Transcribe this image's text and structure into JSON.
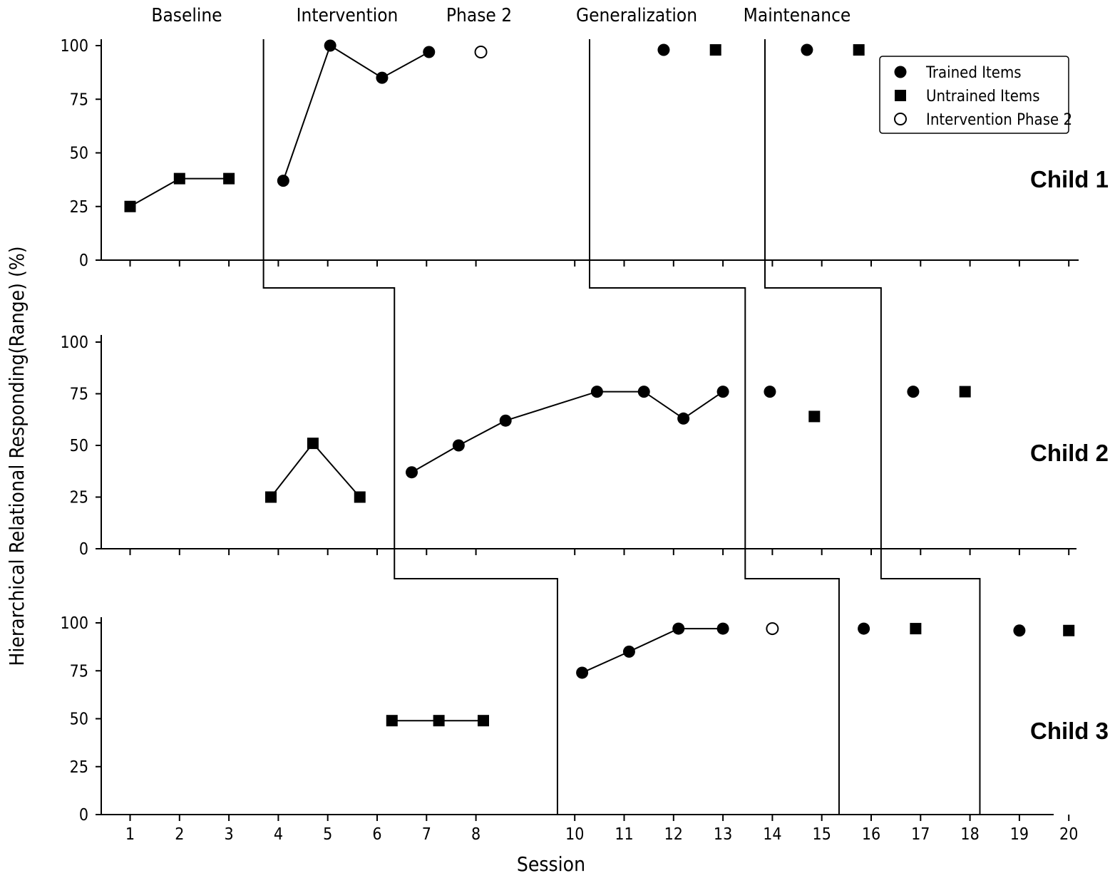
{
  "chart_data": {
    "type": "scatter",
    "ylabel": "Hierarchical Relational Responding(Range) (%)",
    "xlabel": "Session",
    "phases": [
      "Baseline",
      "Intervention",
      "Phase 2",
      "Generalization",
      "Maintenance"
    ],
    "x_tick_labels": [
      "1",
      "2",
      "3",
      "4",
      "5",
      "6",
      "7",
      "8",
      "10",
      "11",
      "12",
      "13",
      "14",
      "15",
      "16",
      "17",
      "18",
      "19",
      "20"
    ],
    "yticks": [
      0,
      25,
      50,
      75,
      100
    ],
    "ylim": [
      0,
      100
    ],
    "legend": {
      "placement": "top-right",
      "items": [
        {
          "label": "Trained Items",
          "marker": "filled-circle"
        },
        {
          "label": "Untrained Items",
          "marker": "filled-square"
        },
        {
          "label": "Intervention Phase 2",
          "marker": "open-circle"
        }
      ]
    },
    "colors": {
      "ink": "#000000",
      "background": "#ffffff"
    },
    "panels": [
      {
        "label": "Child 1",
        "points": [
          {
            "x": 1,
            "y": 25,
            "marker": "square",
            "group": "a"
          },
          {
            "x": 2,
            "y": 38,
            "marker": "square",
            "group": "a"
          },
          {
            "x": 3,
            "y": 38,
            "marker": "square",
            "group": "a"
          },
          {
            "x": 4.1,
            "y": 37,
            "marker": "circle",
            "group": "b"
          },
          {
            "x": 5.05,
            "y": 100,
            "marker": "circle",
            "group": "b"
          },
          {
            "x": 6.1,
            "y": 85,
            "marker": "circle",
            "group": "b"
          },
          {
            "x": 7.05,
            "y": 97,
            "marker": "circle",
            "group": "b"
          },
          {
            "x": 8.1,
            "y": 97,
            "marker": "open-circle"
          },
          {
            "x": 11.8,
            "y": 98,
            "marker": "circle"
          },
          {
            "x": 12.85,
            "y": 98,
            "marker": "square"
          },
          {
            "x": 14.7,
            "y": 98,
            "marker": "circle"
          },
          {
            "x": 15.75,
            "y": 98,
            "marker": "square"
          }
        ]
      },
      {
        "label": "Child 2",
        "points": [
          {
            "x": 3.85,
            "y": 25,
            "marker": "square",
            "group": "a"
          },
          {
            "x": 4.7,
            "y": 51,
            "marker": "square",
            "group": "a"
          },
          {
            "x": 5.65,
            "y": 25,
            "marker": "square",
            "group": "a"
          },
          {
            "x": 6.7,
            "y": 37,
            "marker": "circle",
            "group": "b"
          },
          {
            "x": 7.65,
            "y": 50,
            "marker": "circle",
            "group": "b"
          },
          {
            "x": 8.6,
            "y": 62,
            "marker": "circle",
            "group": "b"
          },
          {
            "x": 10.45,
            "y": 76,
            "marker": "circle",
            "group": "b"
          },
          {
            "x": 11.4,
            "y": 76,
            "marker": "circle",
            "group": "b"
          },
          {
            "x": 12.2,
            "y": 63,
            "marker": "circle",
            "group": "b"
          },
          {
            "x": 13.0,
            "y": 76,
            "marker": "circle",
            "group": "b"
          },
          {
            "x": 13.95,
            "y": 76,
            "marker": "circle"
          },
          {
            "x": 14.85,
            "y": 64,
            "marker": "square"
          },
          {
            "x": 16.85,
            "y": 76,
            "marker": "circle"
          },
          {
            "x": 17.9,
            "y": 76,
            "marker": "square"
          }
        ]
      },
      {
        "label": "Child 3",
        "points": [
          {
            "x": 6.3,
            "y": 49,
            "marker": "square",
            "group": "a"
          },
          {
            "x": 7.25,
            "y": 49,
            "marker": "square",
            "group": "a"
          },
          {
            "x": 8.15,
            "y": 49,
            "marker": "square",
            "group": "a"
          },
          {
            "x": 10.15,
            "y": 74,
            "marker": "circle",
            "group": "b"
          },
          {
            "x": 11.1,
            "y": 85,
            "marker": "circle",
            "group": "b"
          },
          {
            "x": 12.1,
            "y": 97,
            "marker": "circle",
            "group": "b"
          },
          {
            "x": 13.0,
            "y": 97,
            "marker": "circle",
            "group": "b"
          },
          {
            "x": 14.0,
            "y": 97,
            "marker": "open-circle"
          },
          {
            "x": 15.85,
            "y": 97,
            "marker": "circle"
          },
          {
            "x": 16.9,
            "y": 97,
            "marker": "square"
          },
          {
            "x": 19.0,
            "y": 96,
            "marker": "circle"
          },
          {
            "x": 20.0,
            "y": 96,
            "marker": "square"
          }
        ]
      }
    ],
    "phase_change_lines": [
      [
        3.7,
        6.35,
        9.65
      ],
      [
        10.3,
        13.45,
        15.35
      ],
      [
        13.85,
        16.2,
        18.2
      ]
    ]
  }
}
